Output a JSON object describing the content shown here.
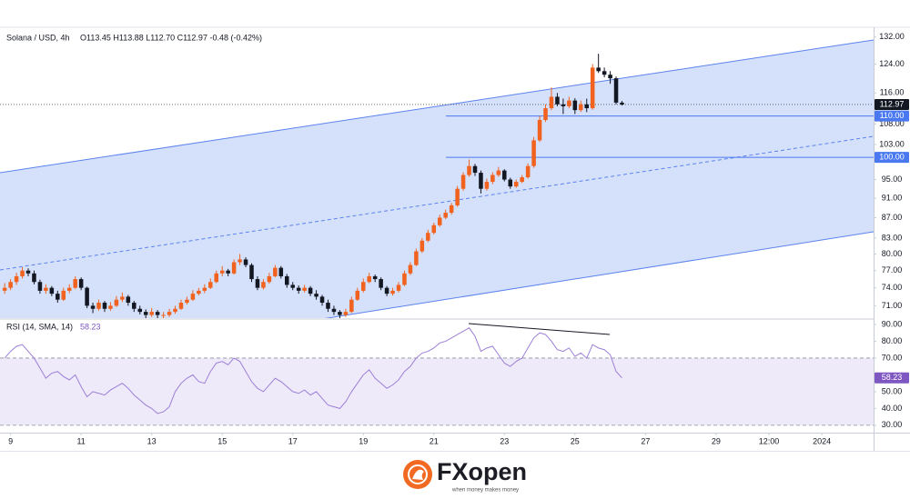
{
  "chart_data": [
    {
      "type": "candlestick",
      "title": "Solana / USD, 4h",
      "ohlc_text": "O113.45  H113.88  L112.70  C112.97  -0.48 (-0.42%)",
      "up_color": "#f0621e",
      "down_color": "#131722",
      "log": true,
      "xlim": [
        -0.8,
        147.8
      ],
      "ylim": [
        69,
        135
      ],
      "yticks": [
        {
          "value": 132,
          "label": "132.00"
        },
        {
          "value": 124,
          "label": "124.00"
        },
        {
          "value": 116,
          "label": "116.00"
        },
        {
          "value": 108,
          "label": "108.00"
        },
        {
          "value": 103,
          "label": "103.00"
        },
        {
          "value": 95,
          "label": "95.00"
        },
        {
          "value": 91,
          "label": "91.00"
        },
        {
          "value": 87,
          "label": "87.00"
        },
        {
          "value": 83,
          "label": "83.00"
        },
        {
          "value": 80,
          "label": "80.00"
        },
        {
          "value": 77,
          "label": "77.00"
        },
        {
          "value": 74,
          "label": "74.00"
        },
        {
          "value": 71,
          "label": "71.00"
        }
      ],
      "levels": [
        {
          "value": 110,
          "label": "110.00"
        },
        {
          "value": 100,
          "label": "100.00"
        }
      ],
      "level_color": "#4a78f0",
      "last": {
        "value": 112.97,
        "label": "112.97"
      },
      "candles": [
        [
          73.5,
          74.8,
          73,
          74
        ],
        [
          74,
          75.5,
          73.6,
          75
        ],
        [
          75,
          76.6,
          74.5,
          76
        ],
        [
          76,
          77.6,
          75.6,
          77
        ],
        [
          77,
          77.4,
          76,
          76.5
        ],
        [
          76.5,
          77,
          74.6,
          75
        ],
        [
          75,
          75.4,
          73,
          73.5
        ],
        [
          73.5,
          74.6,
          73,
          74
        ],
        [
          74,
          74.3,
          72.6,
          73
        ],
        [
          73,
          73.5,
          71.5,
          72
        ],
        [
          72,
          74,
          71.8,
          73.5
        ],
        [
          73.5,
          74.6,
          73.1,
          74
        ],
        [
          74,
          76,
          73.8,
          75.5
        ],
        [
          75.5,
          75.8,
          73.6,
          74
        ],
        [
          74,
          74.2,
          70.6,
          71
        ],
        [
          71,
          71.5,
          69.8,
          70.5
        ],
        [
          70.5,
          72,
          70.2,
          71.5
        ],
        [
          71.5,
          71.8,
          70,
          70.5
        ],
        [
          70.5,
          71.6,
          70.2,
          71
        ],
        [
          71,
          72.6,
          70.8,
          72
        ],
        [
          72,
          73.2,
          71.6,
          72.5
        ],
        [
          72.5,
          72.8,
          71,
          71.5
        ],
        [
          71.5,
          71.8,
          70,
          70.5
        ],
        [
          70.5,
          71,
          69.6,
          70
        ],
        [
          70,
          70.4,
          69,
          69.5
        ],
        [
          69.5,
          70.6,
          69.2,
          70
        ],
        [
          70,
          70.3,
          69,
          69.5
        ],
        [
          69.5,
          70,
          69,
          69.5
        ],
        [
          69.5,
          70.5,
          69.2,
          70
        ],
        [
          70,
          71,
          69.7,
          70.5
        ],
        [
          70.5,
          72,
          70.3,
          71.5
        ],
        [
          71.5,
          72.5,
          71.2,
          72
        ],
        [
          72,
          73.6,
          71.8,
          73
        ],
        [
          73,
          74,
          72.7,
          73.5
        ],
        [
          73.5,
          74.6,
          73.1,
          74
        ],
        [
          74,
          75.6,
          73.8,
          75
        ],
        [
          75,
          77,
          74.8,
          76.5
        ],
        [
          76.5,
          77.8,
          76,
          77
        ],
        [
          77,
          77.3,
          76,
          76.5
        ],
        [
          76.5,
          79,
          76.3,
          78.5
        ],
        [
          78.5,
          80,
          78,
          79
        ],
        [
          79,
          79.4,
          77.6,
          78
        ],
        [
          78,
          78.3,
          75,
          75.5
        ],
        [
          75.5,
          76,
          73.6,
          74
        ],
        [
          74,
          75.5,
          73.7,
          75
        ],
        [
          75,
          76.6,
          74.7,
          76
        ],
        [
          76,
          78,
          75.8,
          77.5
        ],
        [
          77.5,
          77.8,
          75.6,
          76
        ],
        [
          76,
          76.4,
          74,
          74.5
        ],
        [
          74.5,
          75,
          73.6,
          74
        ],
        [
          74,
          74.4,
          73,
          73.5
        ],
        [
          73.5,
          74.5,
          73.2,
          74
        ],
        [
          74,
          74.3,
          72.6,
          73
        ],
        [
          73,
          73.6,
          72,
          72.5
        ],
        [
          72.5,
          72.8,
          71,
          71.5
        ],
        [
          71.5,
          72,
          70,
          70.5
        ],
        [
          70.5,
          71,
          69.5,
          70
        ],
        [
          70,
          70.3,
          69,
          69.5
        ],
        [
          69.5,
          70.5,
          69.2,
          70
        ],
        [
          70,
          72.5,
          69.8,
          72
        ],
        [
          72,
          74,
          71.8,
          73.5
        ],
        [
          73.5,
          75.6,
          73.2,
          75
        ],
        [
          75,
          76.6,
          74.8,
          76
        ],
        [
          76,
          76.3,
          75,
          75.5
        ],
        [
          75.5,
          75.8,
          73.6,
          74
        ],
        [
          74,
          74.3,
          72.6,
          73
        ],
        [
          73,
          74,
          72.7,
          73.5
        ],
        [
          73.5,
          75,
          73.2,
          74.5
        ],
        [
          74.5,
          77,
          74.3,
          76.5
        ],
        [
          76.5,
          78.5,
          76.2,
          78
        ],
        [
          78,
          81,
          77.8,
          80.5
        ],
        [
          80.5,
          83,
          80.2,
          82.5
        ],
        [
          82.5,
          84.6,
          82.2,
          84
        ],
        [
          84,
          86,
          83.7,
          85.5
        ],
        [
          85.5,
          87.6,
          85.2,
          87
        ],
        [
          87,
          88.6,
          86.7,
          88
        ],
        [
          88,
          90,
          87.6,
          89.5
        ],
        [
          89.5,
          93.6,
          89.2,
          93
        ],
        [
          93,
          96.6,
          92.6,
          96
        ],
        [
          96,
          99.5,
          95.6,
          98
        ],
        [
          98,
          98.5,
          95.8,
          96.5
        ],
        [
          96.5,
          97,
          92,
          93
        ],
        [
          93,
          95.2,
          92.6,
          94.5
        ],
        [
          94.5,
          96.6,
          94,
          96
        ],
        [
          96,
          97.8,
          95.6,
          97
        ],
        [
          97,
          97.3,
          94.6,
          95
        ],
        [
          95,
          95.4,
          93,
          93.5
        ],
        [
          93.5,
          95,
          93.2,
          94.5
        ],
        [
          94.5,
          96,
          94.2,
          95.5
        ],
        [
          95.5,
          98.6,
          95.2,
          98
        ],
        [
          98,
          104.8,
          97.6,
          104
        ],
        [
          104,
          110,
          103.6,
          109
        ],
        [
          109,
          113,
          108.5,
          112
        ],
        [
          112,
          117.5,
          111.5,
          115
        ],
        [
          115,
          116,
          112.5,
          113
        ],
        [
          113,
          114.5,
          110.5,
          112.5
        ],
        [
          112.5,
          115,
          112,
          114
        ],
        [
          114,
          114.6,
          110.5,
          111.5
        ],
        [
          111.5,
          114,
          111,
          113
        ],
        [
          113,
          114.5,
          111,
          112
        ],
        [
          112,
          124,
          111.6,
          123
        ],
        [
          123,
          127,
          121.5,
          122
        ],
        [
          122,
          123,
          120.3,
          121
        ],
        [
          121,
          122,
          118.5,
          120
        ],
        [
          120,
          120.5,
          113,
          113.45
        ],
        [
          113.45,
          113.88,
          112.7,
          112.97
        ]
      ]
    },
    {
      "type": "line",
      "title": "RSI (14, SMA, 14)",
      "color": "#9c7fd6",
      "band": [
        30,
        70
      ],
      "band_color": "#efeafa",
      "ylim": [
        25.6,
        92.7
      ],
      "yticks": [
        {
          "value": 90,
          "label": "90.00"
        },
        {
          "value": 80,
          "label": "80.00"
        },
        {
          "value": 70,
          "label": "70.00"
        },
        {
          "value": 50,
          "label": "50.00"
        },
        {
          "value": 40,
          "label": "40.00"
        },
        {
          "value": 30,
          "label": "30.00"
        }
      ],
      "last": {
        "value": 58.23,
        "label": "58.23"
      },
      "xticks": [
        {
          "value": 1,
          "label": "9"
        },
        {
          "value": 13,
          "label": "11"
        },
        {
          "value": 25,
          "label": "13"
        },
        {
          "value": 37,
          "label": "15"
        },
        {
          "value": 49,
          "label": "17"
        },
        {
          "value": 61,
          "label": "19"
        },
        {
          "value": 73,
          "label": "21"
        },
        {
          "value": 85,
          "label": "23"
        },
        {
          "value": 97,
          "label": "25"
        },
        {
          "value": 109,
          "label": "27"
        },
        {
          "value": 121,
          "label": "29"
        },
        {
          "value": 130,
          "label": "12:00"
        },
        {
          "value": 139,
          "label": "2024"
        }
      ],
      "values": [
        70,
        74,
        77,
        78,
        74,
        70,
        64,
        58,
        61,
        62,
        59,
        57,
        60,
        53,
        47,
        50,
        49,
        48,
        51,
        53,
        55,
        52,
        48,
        45,
        42,
        40,
        37,
        38,
        41,
        50,
        55,
        58,
        60,
        56,
        55,
        62,
        67,
        68,
        66,
        70,
        68,
        62,
        56,
        52,
        50,
        54,
        58,
        56,
        53,
        50,
        49,
        51,
        48,
        50,
        46,
        42,
        41,
        40,
        44,
        50,
        55,
        60,
        63,
        58,
        55,
        52,
        54,
        57,
        62,
        65,
        70,
        73,
        74,
        76,
        79,
        80,
        82,
        84,
        86,
        88,
        83,
        74,
        76,
        77,
        72,
        67,
        65,
        68,
        70,
        76,
        82,
        85,
        84,
        80,
        75,
        74,
        76,
        71,
        73,
        70,
        78,
        76,
        75,
        72,
        62,
        58.23
      ]
    }
  ],
  "footer": {
    "brand": "FXopen",
    "tagline": "when money makes money"
  }
}
